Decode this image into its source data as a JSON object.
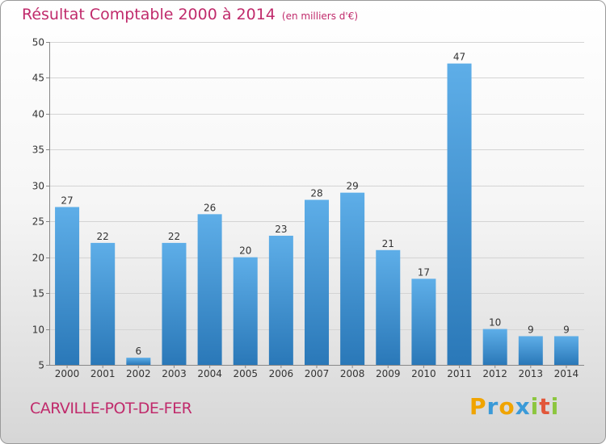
{
  "title": "Résultat Comptable 2000 à 2014",
  "unit": "(en milliers d'€)",
  "commune": "CARVILLE-POT-DE-FER",
  "brand": [
    "P",
    "r",
    "o",
    "x",
    "i",
    "t",
    "i"
  ],
  "colors": {
    "title": "#c02a6b",
    "bar_top": "#5eaee8",
    "bar_bottom": "#2a78b8",
    "brand": [
      "#f0a400",
      "#3a9ad8",
      "#f0a400",
      "#3a9ad8",
      "#8cc63e",
      "#e2573a",
      "#8cc63e"
    ]
  },
  "chart_data": {
    "type": "bar",
    "title": "Résultat Comptable 2000 à 2014",
    "xlabel": "",
    "ylabel": "en milliers d'€",
    "ylim": [
      5,
      50
    ],
    "yticks": [
      5,
      10,
      15,
      20,
      25,
      30,
      35,
      40,
      45,
      50
    ],
    "grid": true,
    "categories": [
      "2000",
      "2001",
      "2002",
      "2003",
      "2004",
      "2005",
      "2006",
      "2007",
      "2008",
      "2009",
      "2010",
      "2011",
      "2012",
      "2013",
      "2014"
    ],
    "values": [
      27,
      22,
      6,
      22,
      26,
      20,
      23,
      28,
      29,
      21,
      17,
      47,
      10,
      9,
      9
    ]
  }
}
